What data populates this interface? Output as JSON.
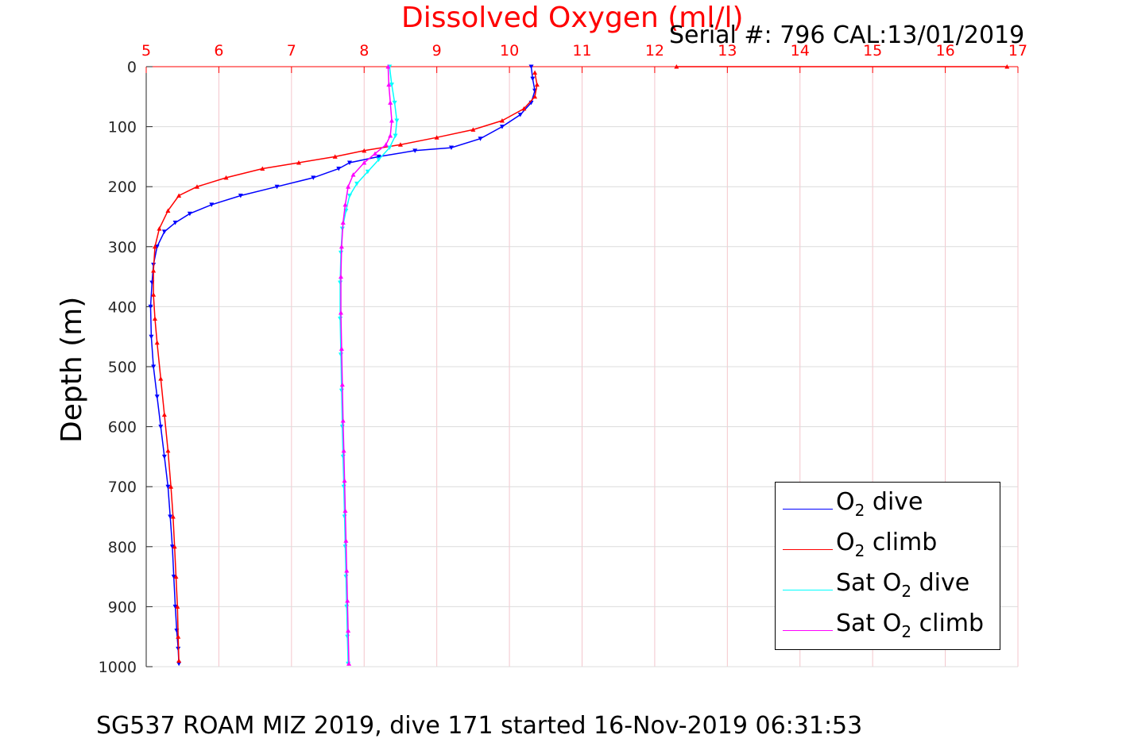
{
  "title": "Dissolved Oxygen (ml/l)",
  "serial": "Serial #: 796  CAL:13/01/2019",
  "footer": "SG537 ROAM MIZ 2019, dive 171 started 16-Nov-2019 06:31:53",
  "colors": {
    "title": "#ff0000",
    "o2_dive": "#0000ff",
    "o2_climb": "#ff0000",
    "sat_dive": "#00ffff",
    "sat_climb": "#ff00ff"
  },
  "chart_data": {
    "type": "line",
    "title": "Dissolved Oxygen (ml/l)",
    "xlabel": "",
    "ylabel": "Depth (m)",
    "xlim": [
      5,
      17
    ],
    "ylim": [
      0,
      1000
    ],
    "y_reversed": true,
    "x_axis_position": "top",
    "grid": true,
    "legend_position": "bottom-right",
    "x_ticks": [
      5,
      6,
      7,
      8,
      9,
      10,
      11,
      12,
      13,
      14,
      15,
      16,
      17
    ],
    "y_ticks": [
      0,
      100,
      200,
      300,
      400,
      500,
      600,
      700,
      800,
      900,
      1000
    ],
    "series": [
      {
        "name": "O2 dive",
        "color": "#0000ff",
        "marker": "triangle-down",
        "x": [
          10.3,
          10.32,
          10.35,
          10.3,
          10.15,
          9.9,
          9.6,
          9.2,
          8.7,
          8.2,
          7.8,
          7.65,
          7.3,
          6.8,
          6.3,
          5.9,
          5.6,
          5.4,
          5.25,
          5.15,
          5.1,
          5.08,
          5.06,
          5.07,
          5.1,
          5.15,
          5.2,
          5.25,
          5.3,
          5.33,
          5.36,
          5.38,
          5.4,
          5.42,
          5.44,
          5.45
        ],
        "y": [
          0,
          20,
          40,
          60,
          80,
          100,
          120,
          135,
          140,
          150,
          160,
          170,
          185,
          200,
          215,
          230,
          245,
          260,
          275,
          300,
          330,
          360,
          400,
          450,
          500,
          550,
          600,
          650,
          700,
          750,
          800,
          850,
          900,
          940,
          970,
          995
        ]
      },
      {
        "name": "O2 climb",
        "color": "#ff0000",
        "marker": "triangle-up",
        "x": [
          10.35,
          10.38,
          10.35,
          10.2,
          9.9,
          9.5,
          9.0,
          8.5,
          8.0,
          7.6,
          7.1,
          6.6,
          6.1,
          5.7,
          5.45,
          5.3,
          5.18,
          5.12,
          5.1,
          5.1,
          5.12,
          5.15,
          5.2,
          5.25,
          5.3,
          5.34,
          5.37,
          5.39,
          5.41,
          5.43,
          5.44,
          5.45,
          12.3,
          16.85
        ],
        "y": [
          10,
          30,
          50,
          70,
          90,
          105,
          118,
          130,
          140,
          150,
          160,
          170,
          185,
          200,
          215,
          240,
          270,
          300,
          340,
          380,
          420,
          460,
          520,
          580,
          640,
          700,
          750,
          800,
          850,
          900,
          950,
          990,
          0,
          0
        ]
      },
      {
        "name": "Sat O2 dive",
        "color": "#00ffff",
        "marker": "triangle-down",
        "x": [
          8.35,
          8.38,
          8.42,
          8.45,
          8.43,
          8.35,
          8.2,
          8.05,
          7.9,
          7.8,
          7.75,
          7.7,
          7.68,
          7.67,
          7.67,
          7.68,
          7.69,
          7.7,
          7.71,
          7.72,
          7.73,
          7.74,
          7.75,
          7.76,
          7.77,
          7.78
        ],
        "y": [
          0,
          30,
          60,
          90,
          115,
          135,
          155,
          175,
          195,
          215,
          240,
          270,
          310,
          360,
          420,
          480,
          540,
          600,
          650,
          700,
          750,
          800,
          850,
          900,
          950,
          995
        ]
      },
      {
        "name": "Sat O2 climb",
        "color": "#ff00ff",
        "marker": "triangle-up",
        "x": [
          8.33,
          8.34,
          8.36,
          8.38,
          8.36,
          8.3,
          8.15,
          8.0,
          7.85,
          7.78,
          7.74,
          7.71,
          7.69,
          7.68,
          7.68,
          7.69,
          7.7,
          7.71,
          7.72,
          7.73,
          7.74,
          7.75,
          7.76,
          7.77,
          7.78,
          7.79
        ],
        "y": [
          0,
          30,
          60,
          90,
          115,
          130,
          145,
          160,
          180,
          200,
          230,
          260,
          300,
          350,
          410,
          470,
          530,
          590,
          640,
          690,
          740,
          790,
          840,
          890,
          940,
          995
        ]
      }
    ]
  },
  "legend": [
    {
      "main": "O",
      "sub": "2",
      "rest": " dive"
    },
    {
      "main": "O",
      "sub": "2",
      "rest": " climb"
    },
    {
      "main": "Sat O",
      "sub": "2",
      "rest": " dive"
    },
    {
      "main": "Sat O",
      "sub": "2",
      "rest": " climb"
    }
  ]
}
